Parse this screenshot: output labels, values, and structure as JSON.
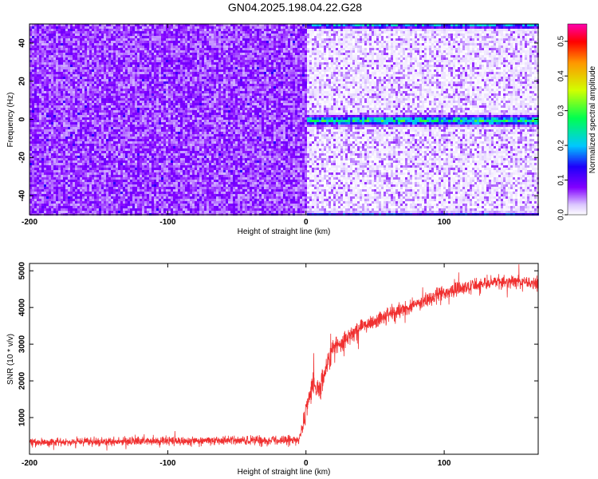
{
  "title": "GN04.2025.198.04.22.G28",
  "chart_data": [
    {
      "type": "heatmap",
      "title": "GN04.2025.198.04.22.G28",
      "xlabel": "Height of straight line (km)",
      "ylabel": "Frequency (Hz)",
      "xlim": [
        -200,
        168
      ],
      "ylim": [
        -50,
        50
      ],
      "x_ticks": [
        -200,
        -100,
        0,
        100
      ],
      "x_tick_labels": [
        "-200",
        "-100",
        "0",
        "100"
      ],
      "y_ticks": [
        -40,
        -20,
        0,
        20,
        40
      ],
      "y_tick_labels": [
        "-40",
        "-20",
        "0",
        "20",
        "40"
      ],
      "grid": false,
      "colorbar": {
        "label": "Normalized spectral amplitude",
        "range": [
          0,
          0.55
        ],
        "ticks": [
          0,
          0.1,
          0.2,
          0.3,
          0.4,
          0.5
        ],
        "tick_labels": [
          "0.0",
          "0.1",
          "0.2",
          "0.3",
          "0.4",
          "0.5"
        ],
        "colormap": "rainbow (white-violet-blue-cyan-green-yellow-red-magenta)"
      },
      "features": {
        "boundary_height_km": 0,
        "noise_region_x": [
          -200,
          0
        ],
        "noise_amplitude_range": [
          0.0,
          0.1
        ],
        "signal_band_frequency_hz": 0,
        "signal_band_amplitude_range": [
          0.1,
          0.35
        ],
        "edge_band_frequency_hz": 50
      }
    },
    {
      "type": "line",
      "xlabel": "Height of straight line (km)",
      "ylabel": "SNR (10 * v/v)",
      "xlim": [
        -200,
        168
      ],
      "ylim": [
        0,
        5200
      ],
      "x_ticks": [
        -200,
        -100,
        0,
        100
      ],
      "x_tick_labels": [
        "-200",
        "-100",
        "0",
        "100"
      ],
      "y_ticks": [
        1000,
        2000,
        3000,
        4000,
        5000
      ],
      "y_tick_labels": [
        "1000",
        "2000",
        "3000",
        "4000",
        "5000"
      ],
      "grid": false,
      "series": [
        {
          "color": "#f03030",
          "x": [
            -200,
            -150,
            -100,
            -50,
            -5,
            0,
            5,
            10,
            15,
            20,
            30,
            40,
            50,
            60,
            70,
            80,
            90,
            100,
            110,
            120,
            130,
            140,
            150,
            160,
            168
          ],
          "y": [
            330,
            340,
            360,
            370,
            380,
            1200,
            1900,
            1700,
            2400,
            2900,
            3200,
            3450,
            3650,
            3800,
            3950,
            4100,
            4250,
            4400,
            4500,
            4600,
            4650,
            4700,
            4700,
            4680,
            4650
          ],
          "noise_band": [
            200,
            200,
            220,
            230,
            240,
            600,
            700,
            700,
            600,
            500,
            450,
            420,
            400,
            400,
            380,
            380,
            370,
            360,
            360,
            350,
            340,
            330,
            320,
            320,
            320
          ]
        }
      ]
    }
  ]
}
